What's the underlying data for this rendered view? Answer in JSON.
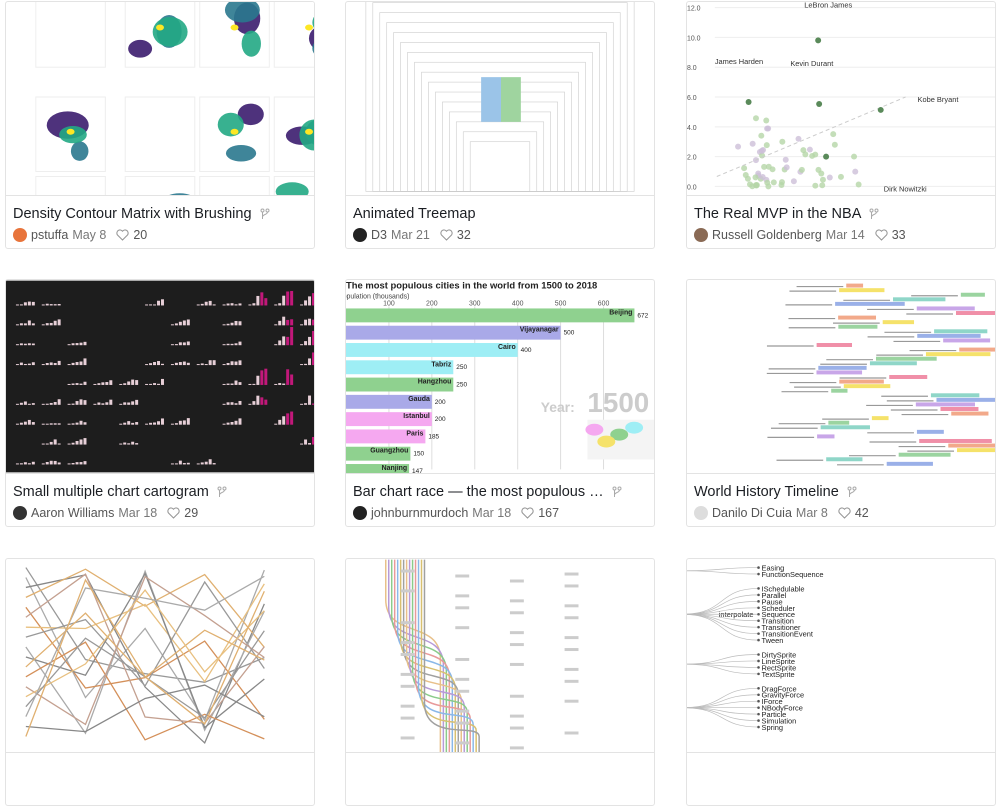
{
  "cards": [
    {
      "title": "Density Contour Matrix with Brushing",
      "author": "pstuffa",
      "date": "May 8",
      "likes": 20,
      "thumb": {
        "kind": "contour"
      }
    },
    {
      "title": "Animated Treemap",
      "author": "D3",
      "date": "Mar 21",
      "likes": 32,
      "thumb": {
        "kind": "treemap"
      }
    },
    {
      "title": "The Real MVP in the NBA",
      "author": "Russell Goldenberg",
      "date": "Mar 14",
      "likes": 33,
      "thumb": {
        "kind": "scatter",
        "yticks": [
          "12.0",
          "10.0",
          "8.0",
          "6.0",
          "4.0",
          "2.0",
          "0.0"
        ],
        "labels": [
          "LeBron James",
          "James Harden",
          "Kevin Durant",
          "Kobe Bryant",
          "Dirk Nowitzki"
        ]
      }
    },
    {
      "title": "Small multiple chart cartogram",
      "author": "Aaron Williams",
      "date": "Mar 18",
      "likes": 29,
      "thumb": {
        "kind": "cartogram"
      }
    },
    {
      "title": "Bar chart race — the most populous …",
      "author": "johnburnmurdoch",
      "date": "Mar 18",
      "likes": 167,
      "thumb": {
        "kind": "barrace",
        "title": "The most populous cities in the world from 1500 to 2018",
        "axis_label": "Population (thousands)",
        "xticks": [
          100,
          200,
          300,
          400,
          500,
          600
        ],
        "year_label": "Year:",
        "year": "1500",
        "bars": [
          {
            "name": "Beijing",
            "value": 672,
            "color": "#8fd18f"
          },
          {
            "name": "Vijayanagar",
            "value": 500,
            "color": "#a9a9e8"
          },
          {
            "name": "Cairo",
            "value": 400,
            "color": "#9eeef5"
          },
          {
            "name": "Tabriz",
            "value": 250,
            "color": "#9eeef5"
          },
          {
            "name": "Hangzhou",
            "value": 250,
            "color": "#8fd18f"
          },
          {
            "name": "Gauda",
            "value": 200,
            "color": "#a9a9e8"
          },
          {
            "name": "Istanbul",
            "value": 200,
            "color": "#f5a8f0"
          },
          {
            "name": "Paris",
            "value": 185,
            "color": "#f5a8f0"
          },
          {
            "name": "Guangzhou",
            "value": 150,
            "color": "#8fd18f"
          },
          {
            "name": "Nanjing",
            "value": 147,
            "color": "#8fd18f"
          }
        ]
      }
    },
    {
      "title": "World History Timeline",
      "author": "Danilo Di Cuia",
      "date": "Mar 8",
      "likes": 42,
      "thumb": {
        "kind": "timeline"
      }
    },
    {
      "title": "",
      "author": "",
      "date": "",
      "likes": null,
      "thumb": {
        "kind": "bumps"
      }
    },
    {
      "title": "",
      "author": "",
      "date": "",
      "likes": null,
      "thumb": {
        "kind": "metro"
      }
    },
    {
      "title": "",
      "author": "",
      "date": "",
      "likes": null,
      "thumb": {
        "kind": "tree",
        "groups": [
          {
            "parent": null,
            "items": [
              "Easing",
              "FunctionSequence"
            ]
          },
          {
            "parent": "interpolate",
            "items": [
              "ISchedulable",
              "Parallel",
              "Pause",
              "Scheduler",
              "Sequence",
              "Transition",
              "Transitioner",
              "TransitionEvent",
              "Tween"
            ]
          },
          {
            "parent": null,
            "items": [
              "DirtySprite",
              "LineSprite",
              "RectSprite",
              "TextSprite"
            ]
          },
          {
            "parent": null,
            "items": [
              "DragForce",
              "GravityForce",
              "IForce",
              "NBodyForce",
              "Particle",
              "Simulation",
              "Spring"
            ]
          }
        ]
      }
    }
  ]
}
